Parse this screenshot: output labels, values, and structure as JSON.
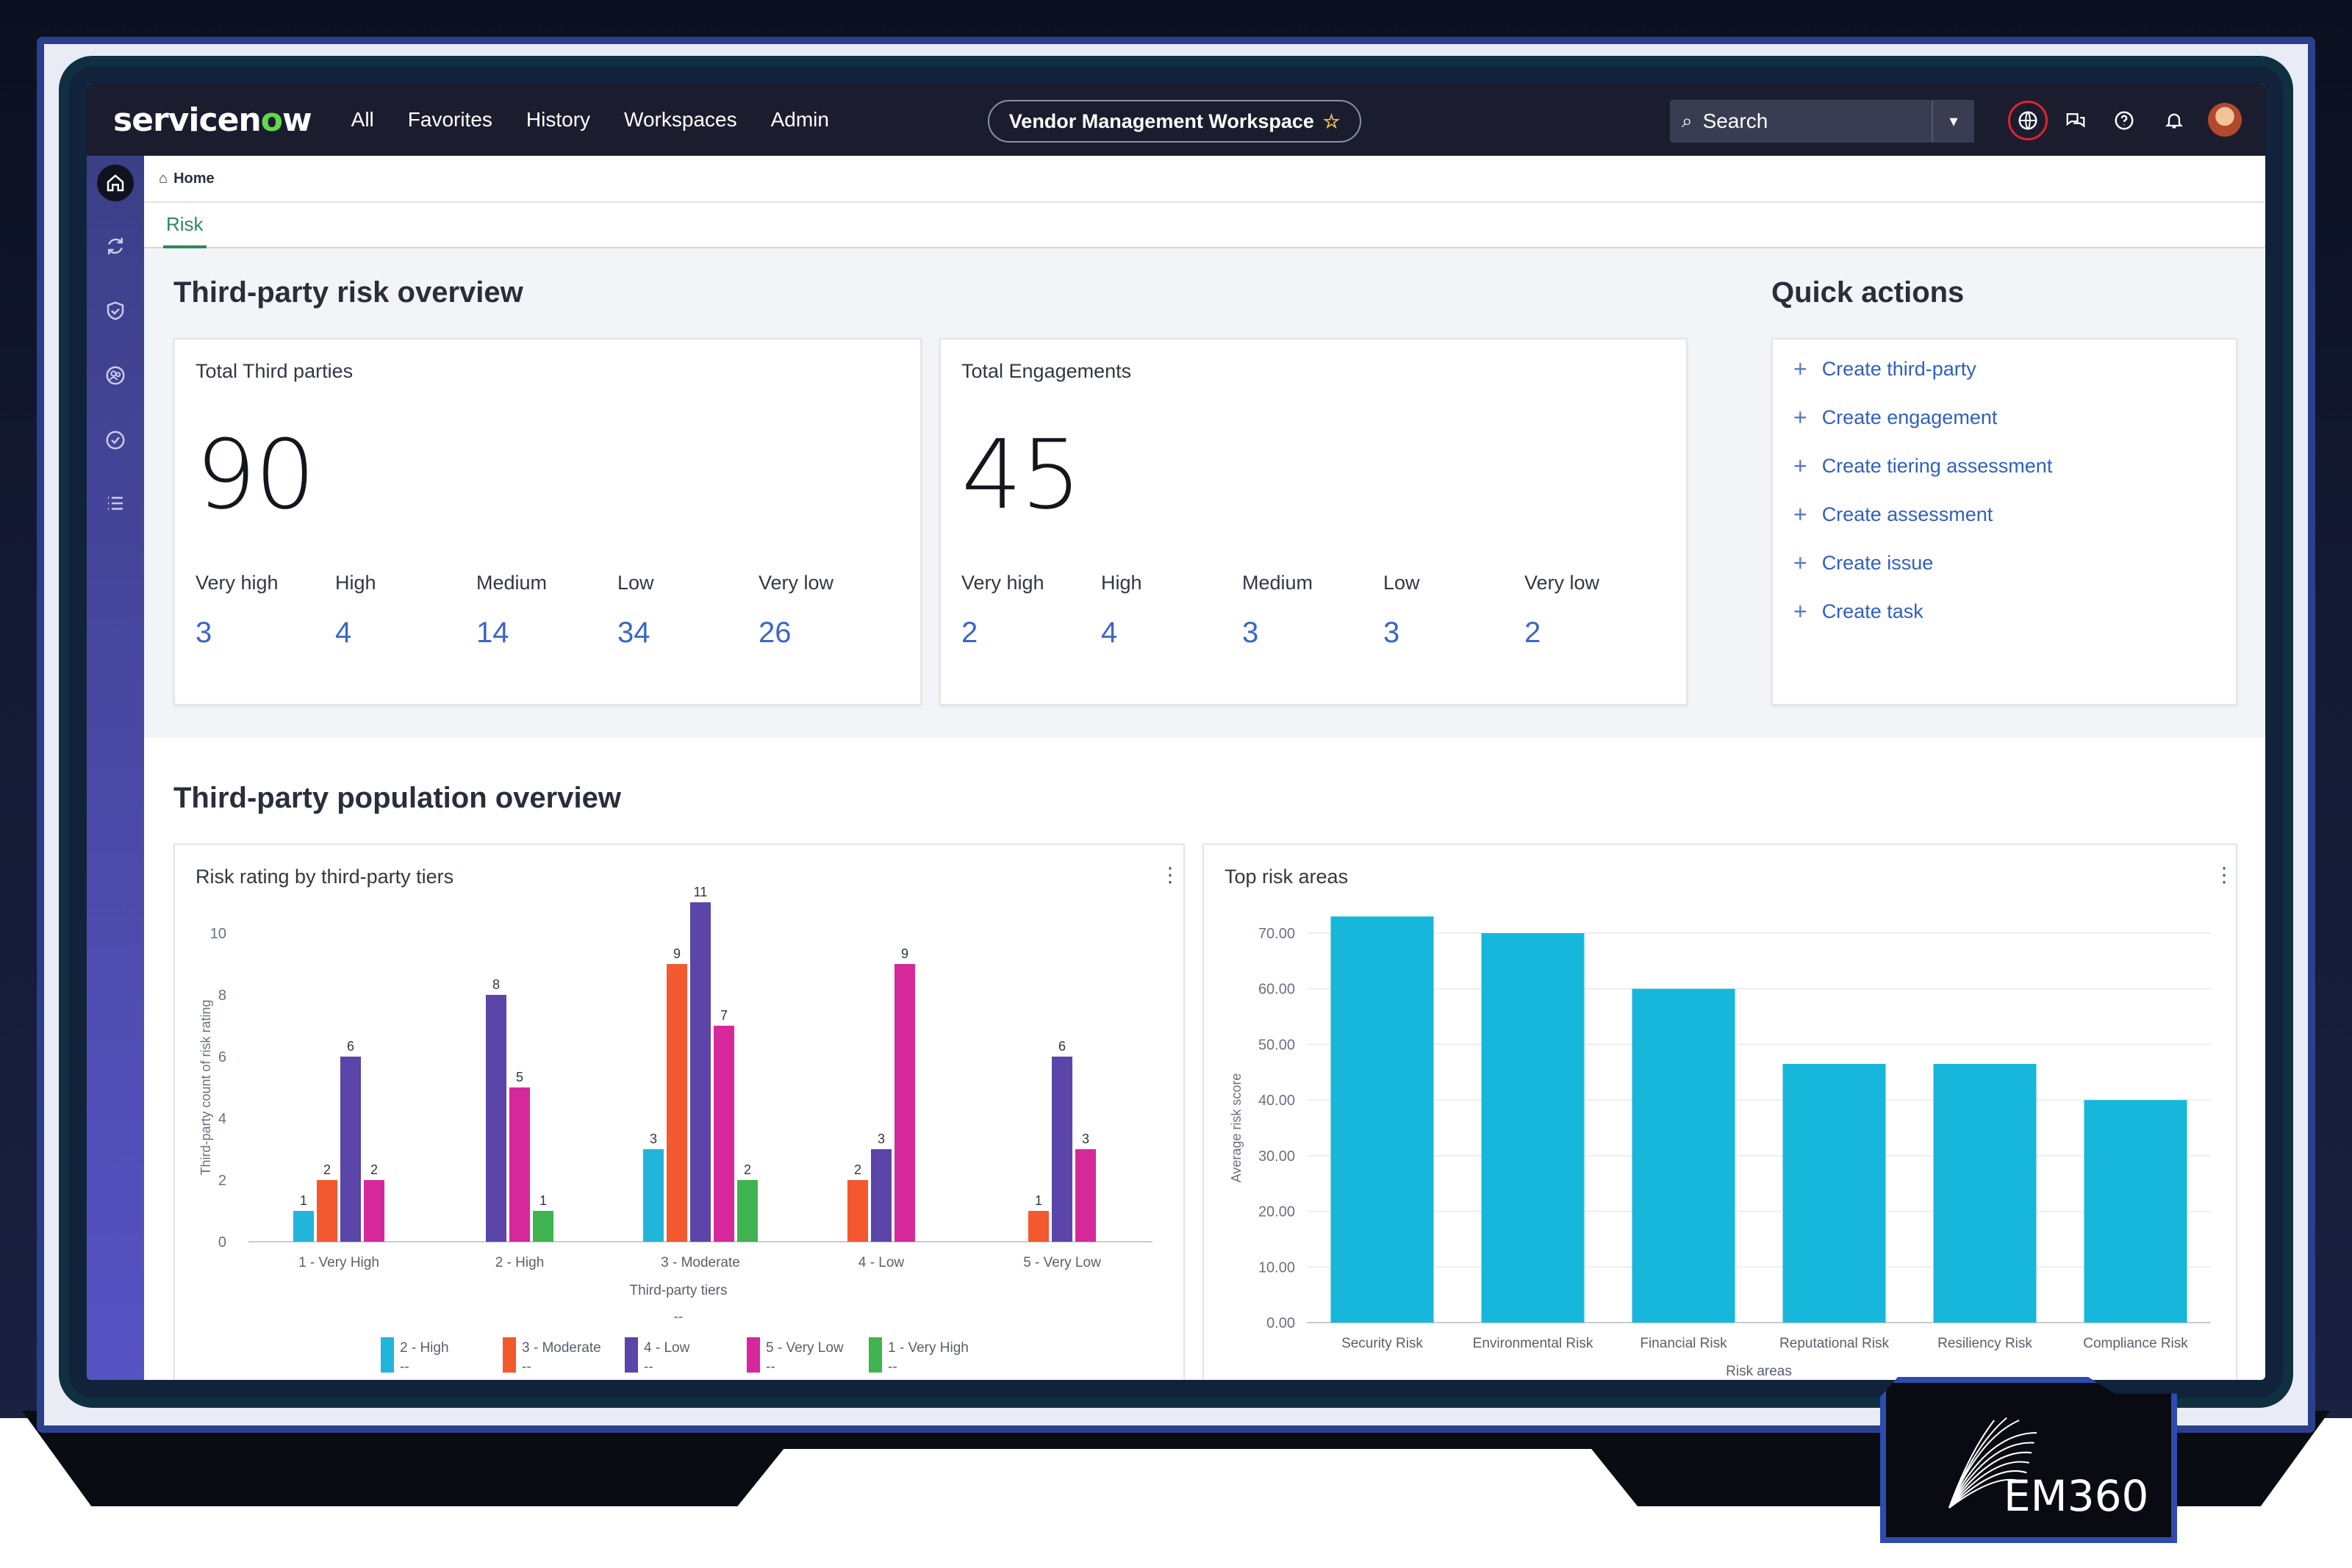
{
  "topnav": {
    "logo": "servicenow",
    "items": [
      "All",
      "Favorites",
      "History",
      "Workspaces",
      "Admin"
    ],
    "workspace": "Vendor Management Workspace",
    "search_placeholder": "Search"
  },
  "breadcrumb": {
    "home": "Home"
  },
  "tabs": [
    {
      "label": "Risk",
      "active": true
    }
  ],
  "risk_overview": {
    "title": "Third-party risk overview",
    "cards": [
      {
        "label": "Total Third parties",
        "total": "90",
        "stats": [
          {
            "name": "Very high",
            "value": "3"
          },
          {
            "name": "High",
            "value": "4"
          },
          {
            "name": "Medium",
            "value": "14"
          },
          {
            "name": "Low",
            "value": "34"
          },
          {
            "name": "Very low",
            "value": "26"
          }
        ]
      },
      {
        "label": "Total Engagements",
        "total": "45",
        "stats": [
          {
            "name": "Very high",
            "value": "2"
          },
          {
            "name": "High",
            "value": "4"
          },
          {
            "name": "Medium",
            "value": "3"
          },
          {
            "name": "Low",
            "value": "3"
          },
          {
            "name": "Very low",
            "value": "2"
          }
        ]
      }
    ]
  },
  "quick_actions": {
    "title": "Quick actions",
    "items": [
      "Create third-party",
      "Create engagement",
      "Create tiering assessment",
      "Create assessment",
      "Create issue",
      "Create task"
    ]
  },
  "population_overview": {
    "title": "Third-party population overview"
  },
  "chart_data": [
    {
      "type": "bar",
      "title": "Risk rating by third-party tiers",
      "xlabel": "Third-party tiers",
      "ylabel": "Third-party count of risk rating",
      "ylim": [
        0,
        10
      ],
      "yticks": [
        0,
        2,
        4,
        6,
        8,
        10
      ],
      "categories": [
        "1 - Very High",
        "2 - High",
        "3 - Moderate",
        "4 - Low",
        "5 - Very Low"
      ],
      "legend_extra": "--",
      "series": [
        {
          "name": "2 - High",
          "color": "#22b5dc",
          "values": [
            1,
            null,
            3,
            null,
            null
          ]
        },
        {
          "name": "3 - Moderate",
          "color": "#f4582e",
          "values": [
            2,
            null,
            9,
            2,
            1
          ]
        },
        {
          "name": "4 - Low",
          "color": "#5b45a8",
          "values": [
            6,
            8,
            11,
            3,
            6
          ]
        },
        {
          "name": "5 - Very Low",
          "color": "#d6289a",
          "values": [
            2,
            5,
            7,
            9,
            3
          ]
        },
        {
          "name": "1 - Very High",
          "color": "#3fb34f",
          "values": [
            null,
            1,
            2,
            null,
            null
          ]
        }
      ],
      "legend_values": [
        "--",
        "--",
        "--",
        "--",
        "--"
      ]
    },
    {
      "type": "bar",
      "title": "Top risk areas",
      "xlabel": "Risk areas",
      "ylabel": "Average risk score",
      "ylim": [
        0,
        70
      ],
      "yticks": [
        "0.00",
        "10.00",
        "20.00",
        "30.00",
        "40.00",
        "50.00",
        "60.00",
        "70.00"
      ],
      "categories": [
        "Security Risk",
        "Environmental Risk",
        "Financial Risk",
        "Reputational Risk",
        "Resiliency Risk",
        "Compliance Risk"
      ],
      "values": [
        73,
        70,
        60,
        46.5,
        46.5,
        40
      ],
      "color": "#16b7db"
    }
  ],
  "watermark": "EM360"
}
